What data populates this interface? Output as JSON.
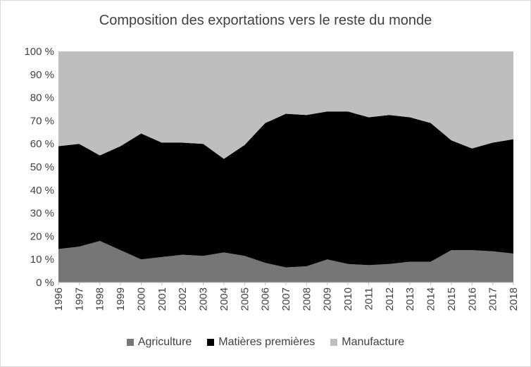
{
  "chart_data": {
    "type": "area",
    "stacked": true,
    "title": "Composition des exportations vers le reste du monde",
    "xlabel": "",
    "ylabel": "",
    "ylim": [
      0,
      100
    ],
    "y_ticks": [
      "0 %",
      "10 %",
      "20 %",
      "30 %",
      "40 %",
      "50 %",
      "60 %",
      "70 %",
      "80 %",
      "90 %",
      "100 %"
    ],
    "x": [
      "1996",
      "1997",
      "1998",
      "1999",
      "2000",
      "2001",
      "2002",
      "2003",
      "2004",
      "2005",
      "2006",
      "2007",
      "2008",
      "2009",
      "2010",
      "2011",
      "2012",
      "2013",
      "2014",
      "2015",
      "2016",
      "2017",
      "2018"
    ],
    "series": [
      {
        "name": "Agriculture",
        "color": "#767676",
        "values": [
          14.5,
          15.5,
          18,
          14,
          10,
          11,
          12,
          11.5,
          13,
          11.5,
          8.5,
          6.5,
          7,
          10,
          8,
          7.5,
          8,
          9,
          9,
          14,
          14,
          13.5,
          12.5
        ]
      },
      {
        "name": "Matières premières",
        "color": "#000000",
        "values": [
          44.5,
          44.5,
          37,
          45,
          54.5,
          49.5,
          48.5,
          48.5,
          40.5,
          48,
          60.5,
          66.5,
          65.5,
          64,
          66,
          64,
          64.5,
          62.5,
          60,
          47.5,
          44,
          47,
          49.5
        ]
      },
      {
        "name": "Manufacture",
        "color": "#bebebe",
        "values": [
          41,
          40,
          45,
          41,
          35.5,
          39.5,
          39.5,
          40,
          46.5,
          40.5,
          31,
          27,
          27.5,
          26,
          26,
          28.5,
          27.5,
          28.5,
          31,
          38.5,
          42,
          39.5,
          38
        ]
      }
    ],
    "grid": false,
    "legend_position": "bottom"
  }
}
